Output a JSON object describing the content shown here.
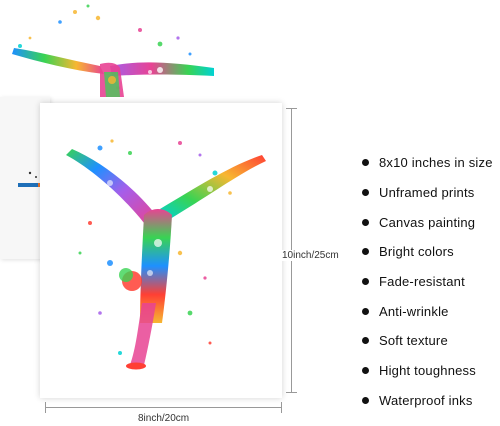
{
  "dimensions": {
    "height_label": "10inch/25cm",
    "width_label": "8inch/20cm"
  },
  "features": [
    "8x10 inches in size",
    "Unframed prints",
    "Canvas painting",
    "Bright colors",
    "Fade-resistant",
    "Anti-wrinkle",
    "Soft texture",
    "Hight toughness",
    "Waterproof inks"
  ],
  "artwork": {
    "subject": "watercolor gymnast handstand split",
    "colors": [
      "#e84393",
      "#39d353",
      "#f7b731",
      "#1e90ff",
      "#a55eea",
      "#ff3f34",
      "#00d2d3"
    ]
  }
}
